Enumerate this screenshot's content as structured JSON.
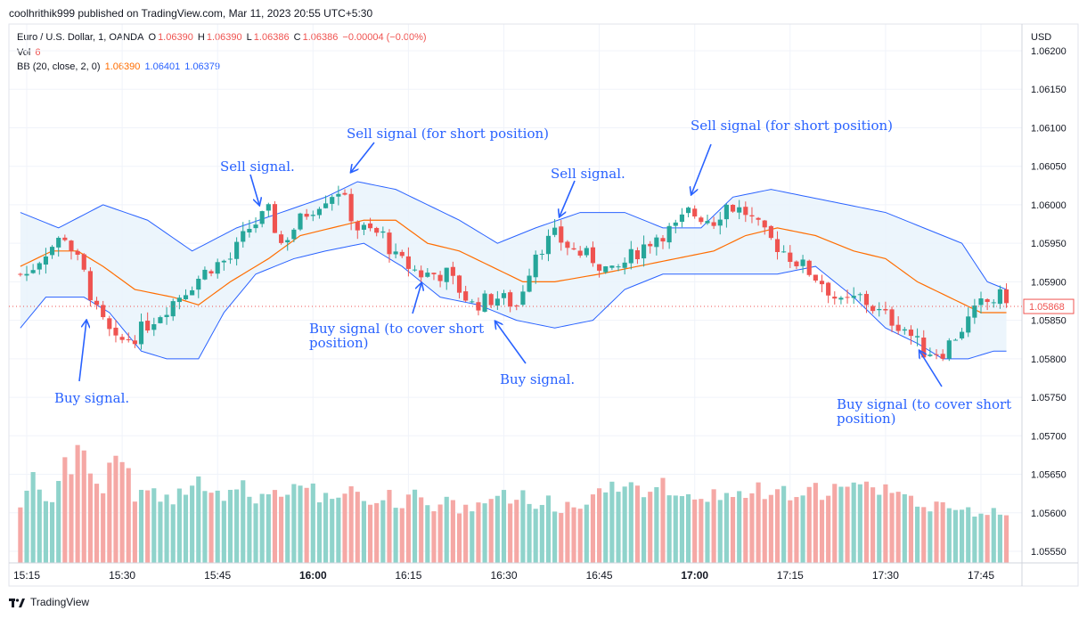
{
  "header": {
    "published": "coolhrithik999 published on TradingView.com, Mar 11, 2023 20:55 UTC+5:30"
  },
  "legend": {
    "symbol": "Euro / U.S. Dollar, 1, OANDA",
    "o_label": "O",
    "o_value": "1.06390",
    "h_label": "H",
    "h_value": "1.06390",
    "l_label": "L",
    "l_value": "1.06386",
    "c_label": "C",
    "c_value": "1.06386",
    "change": "−0.00004 (−0.00%)",
    "vol_label": "Vol",
    "vol_value": "6",
    "bb_label": "BB (20, close, 2, 0)",
    "bb_basis": "1.06390",
    "bb_upper": "1.06401",
    "bb_lower": "1.06379"
  },
  "footer": {
    "brand": "TradingView"
  },
  "colors": {
    "up": "#26a69a",
    "down": "#ef5350",
    "vol_up": "#8fd3cb",
    "vol_down": "#f5a8a5",
    "basis": "#ff6d00",
    "band": "#2962ff",
    "band_fill": "#e9f3fc",
    "annotation": "#2962ff",
    "grid": "#f0f3fa"
  },
  "chart_data": {
    "type": "candlestick",
    "currency_label": "USD",
    "last_price_label": "1.05868",
    "y_range": [
      1.0552,
      1.0625
    ],
    "y_ticks": [
      "1.06200",
      "1.06150",
      "1.06100",
      "1.06050",
      "1.06000",
      "1.05950",
      "1.05900",
      "1.05850",
      "1.05800",
      "1.05750",
      "1.05700",
      "1.05650",
      "1.05600",
      "1.05550"
    ],
    "x_range": [
      "15:14",
      "17:49"
    ],
    "x_ticks": [
      {
        "label": "15:15",
        "bold": false
      },
      {
        "label": "15:30",
        "bold": false
      },
      {
        "label": "15:45",
        "bold": false
      },
      {
        "label": "16:00",
        "bold": true
      },
      {
        "label": "16:15",
        "bold": false
      },
      {
        "label": "16:30",
        "bold": false
      },
      {
        "label": "16:45",
        "bold": false
      },
      {
        "label": "17:00",
        "bold": true
      },
      {
        "label": "17:15",
        "bold": false
      },
      {
        "label": "17:30",
        "bold": false
      },
      {
        "label": "17:45",
        "bold": false
      }
    ],
    "close_anchors": [
      [
        "15:15",
        1.0591
      ],
      [
        "15:18",
        1.0594
      ],
      [
        "15:21",
        1.0596
      ],
      [
        "15:24",
        1.0591
      ],
      [
        "15:26",
        1.0586
      ],
      [
        "15:29",
        1.0582
      ],
      [
        "15:32",
        1.0583
      ],
      [
        "15:36",
        1.0586
      ],
      [
        "15:40",
        1.0589
      ],
      [
        "15:44",
        1.0592
      ],
      [
        "15:47",
        1.0593
      ],
      [
        "15:50",
        1.0597
      ],
      [
        "15:53",
        1.0599
      ],
      [
        "15:55",
        1.0595
      ],
      [
        "15:59",
        1.0599
      ],
      [
        "16:02",
        1.0601
      ],
      [
        "16:04",
        1.0602
      ],
      [
        "16:07",
        1.0597
      ],
      [
        "16:11",
        1.0596
      ],
      [
        "16:13",
        1.0593
      ],
      [
        "16:17",
        1.0591
      ],
      [
        "16:21",
        1.0591
      ],
      [
        "16:25",
        1.0587
      ],
      [
        "16:29",
        1.0588
      ],
      [
        "16:32",
        1.0587
      ],
      [
        "16:35",
        1.0594
      ],
      [
        "16:38",
        1.0596
      ],
      [
        "16:41",
        1.0594
      ],
      [
        "16:44",
        1.0593
      ],
      [
        "16:47",
        1.0591
      ],
      [
        "16:51",
        1.0594
      ],
      [
        "16:54",
        1.0596
      ],
      [
        "16:57",
        1.0597
      ],
      [
        "16:59",
        1.0599
      ],
      [
        "17:03",
        1.0598
      ],
      [
        "17:05",
        1.06
      ],
      [
        "17:08",
        1.0599
      ],
      [
        "17:11",
        1.0596
      ],
      [
        "17:14",
        1.0594
      ],
      [
        "17:17",
        1.0592
      ],
      [
        "17:20",
        1.059
      ],
      [
        "17:23",
        1.0587
      ],
      [
        "17:26",
        1.0588
      ],
      [
        "17:29",
        1.0586
      ],
      [
        "17:33",
        1.0584
      ],
      [
        "17:36",
        1.0581
      ],
      [
        "17:39",
        1.0581
      ],
      [
        "17:42",
        1.0584
      ],
      [
        "17:45",
        1.0587
      ],
      [
        "17:48",
        1.0588
      ]
    ],
    "band_upper": [
      [
        "15:14",
        1.0599
      ],
      [
        "15:20",
        1.0597
      ],
      [
        "15:27",
        1.06
      ],
      [
        "15:34",
        1.0598
      ],
      [
        "15:41",
        1.0594
      ],
      [
        "15:48",
        1.0597
      ],
      [
        "15:55",
        1.0599
      ],
      [
        "16:02",
        1.0601
      ],
      [
        "16:07",
        1.0603
      ],
      [
        "16:13",
        1.0602
      ],
      [
        "16:18",
        1.06
      ],
      [
        "16:23",
        1.0598
      ],
      [
        "16:29",
        1.0595
      ],
      [
        "16:35",
        1.0597
      ],
      [
        "16:42",
        1.0599
      ],
      [
        "16:49",
        1.0599
      ],
      [
        "16:55",
        1.0597
      ],
      [
        "17:01",
        1.0597
      ],
      [
        "17:06",
        1.0601
      ],
      [
        "17:12",
        1.0602
      ],
      [
        "17:18",
        1.0601
      ],
      [
        "17:24",
        1.06
      ],
      [
        "17:30",
        1.0599
      ],
      [
        "17:36",
        1.0597
      ],
      [
        "17:42",
        1.0595
      ],
      [
        "17:46",
        1.059
      ],
      [
        "17:49",
        1.0589
      ]
    ],
    "band_lower": [
      [
        "15:14",
        1.0584
      ],
      [
        "15:18",
        1.0588
      ],
      [
        "15:24",
        1.0588
      ],
      [
        "15:28",
        1.0586
      ],
      [
        "15:33",
        1.0581
      ],
      [
        "15:37",
        1.058
      ],
      [
        "15:42",
        1.058
      ],
      [
        "15:46",
        1.0586
      ],
      [
        "15:51",
        1.0591
      ],
      [
        "15:57",
        1.0593
      ],
      [
        "16:02",
        1.0594
      ],
      [
        "16:08",
        1.0595
      ],
      [
        "16:14",
        1.0592
      ],
      [
        "16:20",
        1.0588
      ],
      [
        "16:26",
        1.0587
      ],
      [
        "16:32",
        1.0585
      ],
      [
        "16:38",
        1.0584
      ],
      [
        "16:44",
        1.0585
      ],
      [
        "16:49",
        1.0589
      ],
      [
        "16:55",
        1.0591
      ],
      [
        "17:01",
        1.0591
      ],
      [
        "17:07",
        1.0591
      ],
      [
        "17:13",
        1.0591
      ],
      [
        "17:19",
        1.0592
      ],
      [
        "17:25",
        1.0588
      ],
      [
        "17:30",
        1.0584
      ],
      [
        "17:35",
        1.0582
      ],
      [
        "17:39",
        1.058
      ],
      [
        "17:43",
        1.058
      ],
      [
        "17:47",
        1.0581
      ],
      [
        "17:49",
        1.0581
      ]
    ],
    "basis": [
      [
        "15:14",
        1.0592
      ],
      [
        "15:19",
        1.0594
      ],
      [
        "15:23",
        1.0594
      ],
      [
        "15:27",
        1.0592
      ],
      [
        "15:32",
        1.0589
      ],
      [
        "15:38",
        1.0588
      ],
      [
        "15:42",
        1.0587
      ],
      [
        "15:47",
        1.059
      ],
      [
        "15:53",
        1.0593
      ],
      [
        "15:58",
        1.0596
      ],
      [
        "16:03",
        1.0597
      ],
      [
        "16:08",
        1.0598
      ],
      [
        "16:13",
        1.0598
      ],
      [
        "16:18",
        1.0595
      ],
      [
        "16:23",
        1.0594
      ],
      [
        "16:28",
        1.0592
      ],
      [
        "16:33",
        1.059
      ],
      [
        "16:38",
        1.059
      ],
      [
        "16:45",
        1.0591
      ],
      [
        "16:51",
        1.0592
      ],
      [
        "16:57",
        1.0593
      ],
      [
        "17:03",
        1.0594
      ],
      [
        "17:08",
        1.0596
      ],
      [
        "17:13",
        1.0597
      ],
      [
        "17:19",
        1.0596
      ],
      [
        "17:25",
        1.0594
      ],
      [
        "17:30",
        1.0593
      ],
      [
        "17:35",
        1.059
      ],
      [
        "17:40",
        1.0588
      ],
      [
        "17:45",
        1.0586
      ],
      [
        "17:49",
        1.0586
      ]
    ],
    "volume_profile": [
      [
        0.42,
        0.55,
        0.68
      ],
      [
        0.55,
        0.5,
        0.45
      ],
      [
        0.62,
        0.75,
        0.7
      ],
      [
        0.9,
        0.85,
        0.65
      ],
      [
        0.6,
        0.55,
        0.7
      ],
      [
        0.78,
        0.8,
        0.65
      ],
      [
        0.5,
        0.55,
        0.6
      ],
      [
        0.52,
        0.5,
        0.55
      ],
      [
        0.48,
        0.6,
        0.52
      ],
      [
        0.55,
        0.62,
        0.5
      ],
      [
        0.58,
        0.5,
        0.45
      ],
      [
        0.5,
        0.52,
        0.58
      ],
      [
        0.48,
        0.45,
        0.52
      ],
      [
        0.55,
        0.5,
        0.48
      ],
      [
        0.5,
        0.6,
        0.58
      ],
      [
        0.62,
        0.55,
        0.5
      ],
      [
        0.52,
        0.48,
        0.5
      ],
      [
        0.55,
        0.6,
        0.52
      ],
      [
        0.5,
        0.45,
        0.42
      ],
      [
        0.48,
        0.52,
        0.45
      ],
      [
        0.45,
        0.5,
        0.55
      ],
      [
        0.52,
        0.48,
        0.42
      ],
      [
        0.4,
        0.45,
        0.52
      ],
      [
        0.38,
        0.42,
        0.4
      ],
      [
        0.45,
        0.48,
        0.52
      ],
      [
        0.5,
        0.55,
        0.45
      ],
      [
        0.48,
        0.52,
        0.45
      ],
      [
        0.42,
        0.48,
        0.55
      ],
      [
        0.4,
        0.38,
        0.45
      ],
      [
        0.42,
        0.45,
        0.4
      ],
      [
        0.48,
        0.52,
        0.55
      ],
      [
        0.6,
        0.58,
        0.55
      ],
      [
        0.58,
        0.55,
        0.52
      ],
      [
        0.55,
        0.52,
        0.58
      ],
      [
        0.5,
        0.48,
        0.55
      ],
      [
        0.52,
        0.5,
        0.48
      ],
      [
        0.5,
        0.55,
        0.48
      ],
      [
        0.52,
        0.48,
        0.5
      ],
      [
        0.45,
        0.5,
        0.55
      ],
      [
        0.5,
        0.48,
        0.52
      ],
      [
        0.55,
        0.52,
        0.5
      ],
      [
        0.52,
        0.58,
        0.55
      ],
      [
        0.5,
        0.55,
        0.6
      ],
      [
        0.58,
        0.62,
        0.55
      ],
      [
        0.65,
        0.6,
        0.55
      ],
      [
        0.55,
        0.58,
        0.52
      ],
      [
        0.5,
        0.55,
        0.48
      ],
      [
        0.45,
        0.42,
        0.4
      ],
      [
        0.48,
        0.45,
        0.42
      ],
      [
        0.42,
        0.4,
        0.38
      ]
    ],
    "annotations": [
      {
        "lines": [
          "Sell signal."
        ]
      },
      {
        "lines": [
          "Sell signal (for short position)"
        ]
      },
      {
        "lines": [
          "Sell signal."
        ]
      },
      {
        "lines": [
          "Sell signal (for short position)"
        ]
      },
      {
        "lines": [
          "Buy signal."
        ]
      },
      {
        "lines": [
          "Buy signal (to cover short",
          "position)"
        ]
      },
      {
        "lines": [
          "Buy signal."
        ]
      },
      {
        "lines": [
          "Buy signal (to cover short",
          "position)"
        ]
      }
    ]
  }
}
